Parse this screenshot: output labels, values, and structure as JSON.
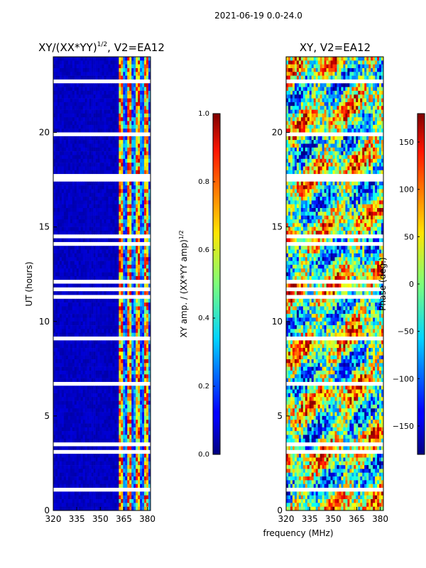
{
  "chart_data": [
    {
      "type": "heatmap",
      "figure_title": "2021-06-19 0.0-24.0",
      "title": "XY/(XX*YY)",
      "title_sup": "1/2",
      "title_suffix": ", V2=EA12",
      "xlabel": "frequency (MHz)",
      "ylabel": "UT (hours)",
      "xlim": [
        320,
        382
      ],
      "ylim": [
        0,
        24
      ],
      "xticks": [
        320,
        335,
        350,
        365,
        380
      ],
      "yticks": [
        0,
        5,
        10,
        15,
        20
      ],
      "colorbar": {
        "label": "XY amp. / (XX*YY amp)",
        "label_sup": "1/2",
        "range": [
          0.0,
          1.0
        ],
        "ticks": [
          "0.0",
          "0.2",
          "0.4",
          "0.6",
          "0.8",
          "1.0"
        ]
      },
      "description": "Normalized cross-correlation amplitude; low (~0.05) at 320-360 MHz, bright RFI-free channels with high amplitude (~0.6-1.0) in bands near 363, 368, 373, 379 MHz; white rows are flagged data."
    },
    {
      "type": "heatmap",
      "title": "XY, V2=EA12",
      "xlabel": "frequency (MHz)",
      "xlim": [
        320,
        382
      ],
      "ylim": [
        0,
        24
      ],
      "xticks": [
        320,
        335,
        350,
        365,
        380
      ],
      "yticks": [
        0,
        5,
        10,
        15,
        20
      ],
      "colorbar": {
        "label": "Phase (deg.)",
        "range": [
          -180,
          180
        ],
        "ticks": [
          "−150",
          "−100",
          "−50",
          "0",
          "50",
          "100",
          "150"
        ]
      },
      "description": "XY phase in degrees, noisy spread across full range with horizontal flagged rows."
    }
  ]
}
